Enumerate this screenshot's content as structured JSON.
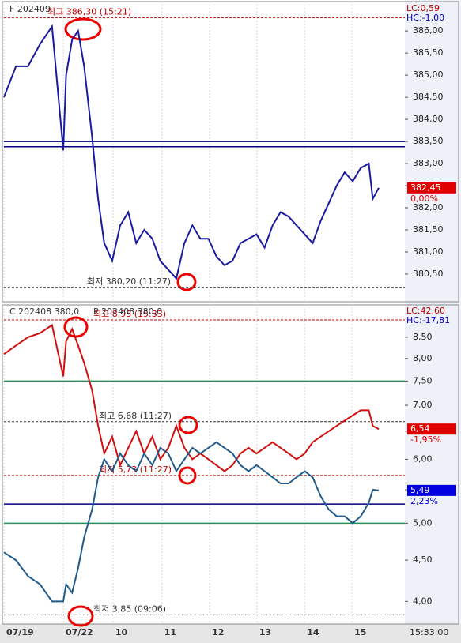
{
  "chart_data": [
    {
      "type": "line",
      "label": "F 202409",
      "lc": "LC:0,59",
      "hc": "HC:-1,00",
      "ylim": [
        379.91,
        386.61
      ],
      "log": false,
      "yticks": [
        {
          "value": 380.5,
          "label": "380,50"
        },
        {
          "value": 381,
          "label": "381,00"
        },
        {
          "value": 381.5,
          "label": "381,50"
        },
        {
          "value": 382,
          "label": "382,00"
        },
        {
          "value": 382.5,
          "label": "382,50"
        },
        {
          "value": 383,
          "label": "383,00"
        },
        {
          "value": 383.5,
          "label": "383,50"
        },
        {
          "value": 384,
          "label": "384,00"
        },
        {
          "value": 384.5,
          "label": "384,50"
        },
        {
          "value": 385,
          "label": "385,00"
        },
        {
          "value": 385.5,
          "label": "385,50"
        },
        {
          "value": 386,
          "label": "386,00"
        }
      ],
      "xlim": [
        0,
        100
      ],
      "xticks": [
        0,
        14.8,
        27.2,
        39.4,
        51.3,
        63.1,
        75,
        86.8
      ],
      "x": [
        0,
        3,
        6,
        9,
        12,
        14.8,
        15.5,
        17,
        18.5,
        20,
        22,
        23.5,
        25,
        27,
        29,
        31,
        33,
        35,
        37,
        39,
        41,
        43,
        45,
        47,
        49,
        51,
        53,
        55,
        57,
        59,
        61,
        63,
        65,
        67,
        69,
        71,
        73,
        75,
        77,
        79,
        81,
        83,
        85,
        87,
        89,
        91,
        92,
        93.5
      ],
      "series": [
        {
          "name": "F 202409",
          "color": "#1a1aa0",
          "values": [
            384.5,
            385.2,
            385.2,
            385.7,
            386.1,
            383.3,
            385.0,
            385.8,
            386.0,
            385.2,
            383.6,
            382.2,
            381.2,
            380.8,
            381.6,
            381.9,
            381.2,
            381.5,
            381.3,
            380.8,
            380.6,
            380.4,
            381.2,
            381.6,
            381.3,
            381.3,
            380.9,
            380.7,
            380.8,
            381.2,
            381.3,
            381.4,
            381.1,
            381.6,
            381.9,
            381.8,
            381.6,
            381.4,
            381.2,
            381.7,
            382.1,
            382.5,
            382.8,
            382.6,
            382.9,
            383.0,
            382.2,
            382.45
          ]
        }
      ],
      "hlines": [
        {
          "value": 386.3,
          "color": "#c00000",
          "dash": true,
          "label": "최고 386,30 (15:21)"
        },
        {
          "value": 380.2,
          "color": "#333333",
          "dash": true,
          "label": "최저 380,20 (11:27)"
        },
        {
          "value": 383.5,
          "color": "#000080"
        },
        {
          "value": 383.38,
          "color": "#000080"
        }
      ],
      "tags": [
        {
          "value": 382.45,
          "price": "382,45",
          "change": "0,00%",
          "color": "#e00000"
        }
      ]
    },
    {
      "type": "line",
      "label": "C 202408 380,0",
      "label2": "P 202408 380,0",
      "lc": "LC:42,60",
      "hc": "HC:-17,81",
      "ylim": [
        3.75,
        8.99
      ],
      "log": true,
      "yticks": [
        {
          "value": 4,
          "label": "4,00"
        },
        {
          "value": 4.5,
          "label": "4,50"
        },
        {
          "value": 5,
          "label": "5,00"
        },
        {
          "value": 5.5,
          "label": "5,50"
        },
        {
          "value": 6,
          "label": "6,00"
        },
        {
          "value": 6.5,
          "label": "6,50"
        },
        {
          "value": 7,
          "label": "7,00"
        },
        {
          "value": 7.5,
          "label": "7,50"
        },
        {
          "value": 8,
          "label": "8,00"
        },
        {
          "value": 8.5,
          "label": "8,50"
        }
      ],
      "xlim": [
        0,
        100
      ],
      "xticks": [
        {
          "value": 0,
          "label": "07/19"
        },
        {
          "value": 14.8,
          "label": "07/22"
        },
        {
          "value": 27.2,
          "label": "10"
        },
        {
          "value": 39.4,
          "label": "11"
        },
        {
          "value": 51.3,
          "label": "12"
        },
        {
          "value": 63.1,
          "label": "13"
        },
        {
          "value": 75,
          "label": "14"
        },
        {
          "value": 86.8,
          "label": "15"
        }
      ],
      "time_label": "15:33:00",
      "x": [
        0,
        3,
        6,
        9,
        12,
        14.8,
        15.5,
        17,
        18.5,
        20,
        22,
        23.5,
        25,
        27,
        29,
        31,
        33,
        35,
        37,
        39,
        41,
        43,
        45,
        47,
        49,
        51,
        53,
        55,
        57,
        59,
        61,
        63,
        65,
        67,
        69,
        71,
        73,
        75,
        77,
        79,
        81,
        83,
        85,
        87,
        89,
        91,
        92,
        93.5
      ],
      "series": [
        {
          "name": "C 202408 380,0",
          "color": "#d01010",
          "values": [
            8.1,
            8.3,
            8.5,
            8.6,
            8.8,
            7.6,
            8.4,
            8.7,
            8.3,
            7.9,
            7.3,
            6.6,
            6.1,
            6.4,
            5.9,
            6.2,
            6.5,
            6.1,
            6.4,
            6.0,
            6.2,
            6.6,
            6.2,
            6.0,
            6.1,
            6.0,
            5.9,
            5.8,
            5.9,
            6.1,
            6.2,
            6.1,
            6.2,
            6.3,
            6.2,
            6.1,
            6.0,
            6.1,
            6.3,
            6.4,
            6.5,
            6.6,
            6.7,
            6.8,
            6.9,
            6.9,
            6.6,
            6.54
          ]
        },
        {
          "name": "P 202408 380,0",
          "color": "#1f5a8a",
          "values": [
            4.6,
            4.5,
            4.3,
            4.2,
            4.0,
            4.0,
            4.2,
            4.1,
            4.4,
            4.8,
            5.2,
            5.7,
            6.0,
            5.8,
            6.1,
            5.9,
            5.8,
            6.1,
            5.9,
            6.2,
            6.1,
            5.8,
            6.0,
            6.2,
            6.1,
            6.2,
            6.3,
            6.2,
            6.1,
            5.9,
            5.8,
            5.9,
            5.8,
            5.7,
            5.6,
            5.6,
            5.7,
            5.8,
            5.7,
            5.4,
            5.2,
            5.1,
            5.1,
            5.0,
            5.1,
            5.3,
            5.5,
            5.49
          ]
        }
      ],
      "hlines": [
        {
          "value": 8.93,
          "color": "#c00000",
          "dash": true,
          "label": "최고 8,93 (15:33)"
        },
        {
          "value": 7.5,
          "color": "#2e8b57"
        },
        {
          "value": 6.68,
          "color": "#333333",
          "dash": true,
          "label": "최고 6,68 (11:27)"
        },
        {
          "value": 5.73,
          "color": "#c00000",
          "dash": true,
          "label": "최저 5,73 (11:27)"
        },
        {
          "value": 5.28,
          "color": "#000080"
        },
        {
          "value": 5.0,
          "color": "#2e8b57"
        },
        {
          "value": 3.85,
          "color": "#333333",
          "dash": true,
          "label": "최저 3,85 (09:06)"
        }
      ],
      "tags": [
        {
          "value": 6.54,
          "price": "6,54",
          "change": "-1,95%",
          "color": "#e00000"
        },
        {
          "value": 5.49,
          "price": "5,49",
          "change": "2,23%",
          "color": "#0000e0"
        }
      ]
    }
  ]
}
